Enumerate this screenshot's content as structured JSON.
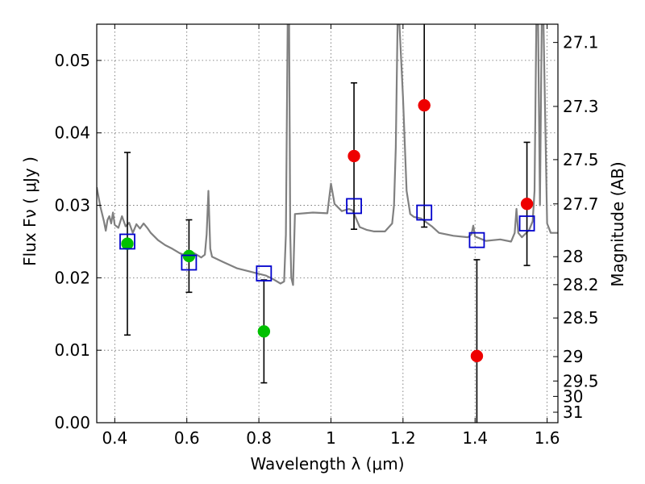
{
  "chart_data": {
    "type": "scatter",
    "title": "",
    "xlabel": "Wavelength  λ (μm)",
    "ylabel": "Flux  Fν  ( μJy )",
    "y2label": "Magnitude (AB)",
    "xlim": [
      0.35,
      1.63
    ],
    "ylim": [
      0.0,
      0.055
    ],
    "grid": true,
    "x_ticks": [
      {
        "value": 0.4,
        "label": "0.4"
      },
      {
        "value": 0.6,
        "label": "0.6"
      },
      {
        "value": 0.8,
        "label": "0.8"
      },
      {
        "value": 1.0,
        "label": "1"
      },
      {
        "value": 1.2,
        "label": "1.2"
      },
      {
        "value": 1.4,
        "label": "1.4"
      },
      {
        "value": 1.6,
        "label": "1.6"
      }
    ],
    "y_ticks": [
      {
        "value": 0.0,
        "label": "0.00"
      },
      {
        "value": 0.01,
        "label": "0.01"
      },
      {
        "value": 0.02,
        "label": "0.02"
      },
      {
        "value": 0.03,
        "label": "0.03"
      },
      {
        "value": 0.04,
        "label": "0.04"
      },
      {
        "value": 0.05,
        "label": "0.05"
      }
    ],
    "y2_ticks": [
      {
        "mag": 27.1,
        "label": "27.1"
      },
      {
        "mag": 27.3,
        "label": "27.3"
      },
      {
        "mag": 27.5,
        "label": "27.5"
      },
      {
        "mag": 27.7,
        "label": "27.7"
      },
      {
        "mag": 28.0,
        "label": "28"
      },
      {
        "mag": 28.2,
        "label": "28.2"
      },
      {
        "mag": 28.5,
        "label": "28.5"
      },
      {
        "mag": 29.0,
        "label": "29"
      },
      {
        "mag": 29.5,
        "label": "29.5"
      },
      {
        "mag": 30.0,
        "label": "30"
      },
      {
        "mag": 31.0,
        "label": "31"
      }
    ],
    "colors": {
      "detection": "#00c000",
      "upper": "#ee0000",
      "model": "#0000cc",
      "sed": "#808080",
      "errorbar": "#000000",
      "grid": "#666666"
    },
    "series": [
      {
        "marker": "circle",
        "color": "#00c000",
        "points": [
          {
            "x": 0.435,
            "y": 0.0247,
            "err": 0.0126
          },
          {
            "x": 0.606,
            "y": 0.023,
            "err": 0.005
          },
          {
            "x": 0.814,
            "y": 0.0126,
            "err": 0.0071
          }
        ]
      },
      {
        "marker": "circle",
        "color": "#ee0000",
        "points": [
          {
            "x": 1.064,
            "y": 0.0368,
            "err": 0.0101
          },
          {
            "x": 1.259,
            "y": 0.0438,
            "err": 0.0168
          },
          {
            "x": 1.405,
            "y": 0.0092,
            "err": 0.0133
          },
          {
            "x": 1.544,
            "y": 0.0302,
            "err": 0.0085
          }
        ]
      },
      {
        "marker": "square",
        "color": "#0000cc",
        "points": [
          {
            "x": 0.435,
            "y": 0.025
          },
          {
            "x": 0.606,
            "y": 0.0221
          },
          {
            "x": 0.814,
            "y": 0.0206
          },
          {
            "x": 1.064,
            "y": 0.0299
          },
          {
            "x": 1.259,
            "y": 0.029
          },
          {
            "x": 1.405,
            "y": 0.0252
          },
          {
            "x": 1.544,
            "y": 0.0275
          }
        ]
      },
      {
        "line": "solid",
        "color": "#808080",
        "x": [
          0.35,
          0.355,
          0.36,
          0.37,
          0.375,
          0.38,
          0.385,
          0.39,
          0.395,
          0.4,
          0.41,
          0.42,
          0.43,
          0.44,
          0.45,
          0.46,
          0.47,
          0.48,
          0.49,
          0.5,
          0.52,
          0.54,
          0.56,
          0.58,
          0.6,
          0.62,
          0.64,
          0.65,
          0.655,
          0.66,
          0.665,
          0.67,
          0.7,
          0.74,
          0.78,
          0.82,
          0.84,
          0.86,
          0.87,
          0.875,
          0.88,
          0.884,
          0.887,
          0.89,
          0.895,
          0.9,
          0.95,
          0.99,
          1.0,
          1.01,
          1.03,
          1.05,
          1.06,
          1.08,
          1.1,
          1.12,
          1.15,
          1.17,
          1.175,
          1.18,
          1.185,
          1.19,
          1.2,
          1.21,
          1.22,
          1.23,
          1.25,
          1.28,
          1.3,
          1.34,
          1.38,
          1.39,
          1.395,
          1.4,
          1.43,
          1.47,
          1.5,
          1.51,
          1.515,
          1.52,
          1.53,
          1.55,
          1.56,
          1.565,
          1.57,
          1.575,
          1.58,
          1.585,
          1.59,
          1.6,
          1.61,
          1.63
        ],
        "y": [
          0.0325,
          0.0312,
          0.0298,
          0.0278,
          0.0265,
          0.028,
          0.0285,
          0.0275,
          0.029,
          0.0273,
          0.0269,
          0.0285,
          0.0271,
          0.0276,
          0.0262,
          0.0274,
          0.0268,
          0.0275,
          0.0269,
          0.0262,
          0.0252,
          0.0245,
          0.024,
          0.0234,
          0.023,
          0.0234,
          0.0228,
          0.0232,
          0.026,
          0.032,
          0.024,
          0.0229,
          0.0222,
          0.0213,
          0.0208,
          0.0203,
          0.0198,
          0.0192,
          0.0195,
          0.026,
          0.055,
          0.055,
          0.026,
          0.02,
          0.019,
          0.0288,
          0.029,
          0.0289,
          0.033,
          0.0302,
          0.0292,
          0.0295,
          0.0293,
          0.027,
          0.0266,
          0.0264,
          0.0264,
          0.0275,
          0.03,
          0.038,
          0.055,
          0.055,
          0.045,
          0.032,
          0.0288,
          0.0284,
          0.0282,
          0.0271,
          0.0262,
          0.0258,
          0.0256,
          0.026,
          0.0272,
          0.0257,
          0.0251,
          0.0253,
          0.025,
          0.0262,
          0.0295,
          0.0262,
          0.0256,
          0.0266,
          0.0278,
          0.032,
          0.055,
          0.055,
          0.03,
          0.055,
          0.055,
          0.0275,
          0.0262,
          0.0262
        ]
      }
    ]
  }
}
